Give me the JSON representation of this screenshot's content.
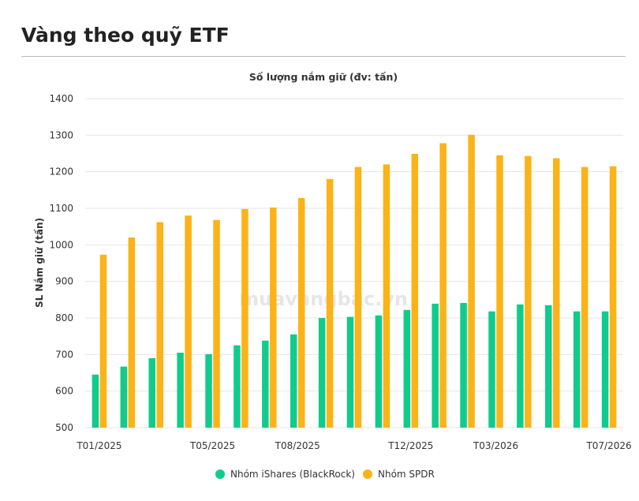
{
  "header": {
    "title": "Vàng theo quỹ ETF"
  },
  "watermark": "muavangbac.vn",
  "chart_data": {
    "type": "bar",
    "title": "Số lượng nắm giữ (đv: tấn)",
    "xlabel": "",
    "ylabel": "SL Nắm giữ (tấn)",
    "ylim": [
      500,
      1400
    ],
    "yticks": [
      500,
      600,
      700,
      800,
      900,
      1000,
      1100,
      1200,
      1300,
      1400
    ],
    "grid": true,
    "legend_position": "bottom",
    "categories": [
      "T01/2025",
      "T02/2025",
      "T03/2025",
      "T04/2025",
      "T05/2025",
      "T06/2025",
      "T07/2025",
      "T08/2025",
      "T09/2025",
      "T10/2025",
      "T11/2025",
      "T12/2025",
      "T01/2026",
      "T02/2026",
      "T03/2026",
      "T04/2026",
      "T05/2026",
      "T06/2026",
      "T07/2026"
    ],
    "x_tick_labels_shown": [
      "T01/2025",
      "T05/2025",
      "T08/2025",
      "T12/2025",
      "T03/2026",
      "T07/2026"
    ],
    "series": [
      {
        "name": "Nhóm iShares (BlackRock)",
        "color": "#10cc8a",
        "values": [
          645,
          667,
          690,
          705,
          701,
          725,
          738,
          755,
          800,
          803,
          807,
          822,
          839,
          841,
          818,
          837,
          835,
          818,
          818
        ]
      },
      {
        "name": "Nhóm SPDR",
        "color": "#fbb318",
        "values": [
          973,
          1020,
          1062,
          1080,
          1068,
          1098,
          1102,
          1128,
          1180,
          1213,
          1220,
          1249,
          1278,
          1301,
          1245,
          1243,
          1237,
          1213,
          1215
        ]
      }
    ]
  }
}
